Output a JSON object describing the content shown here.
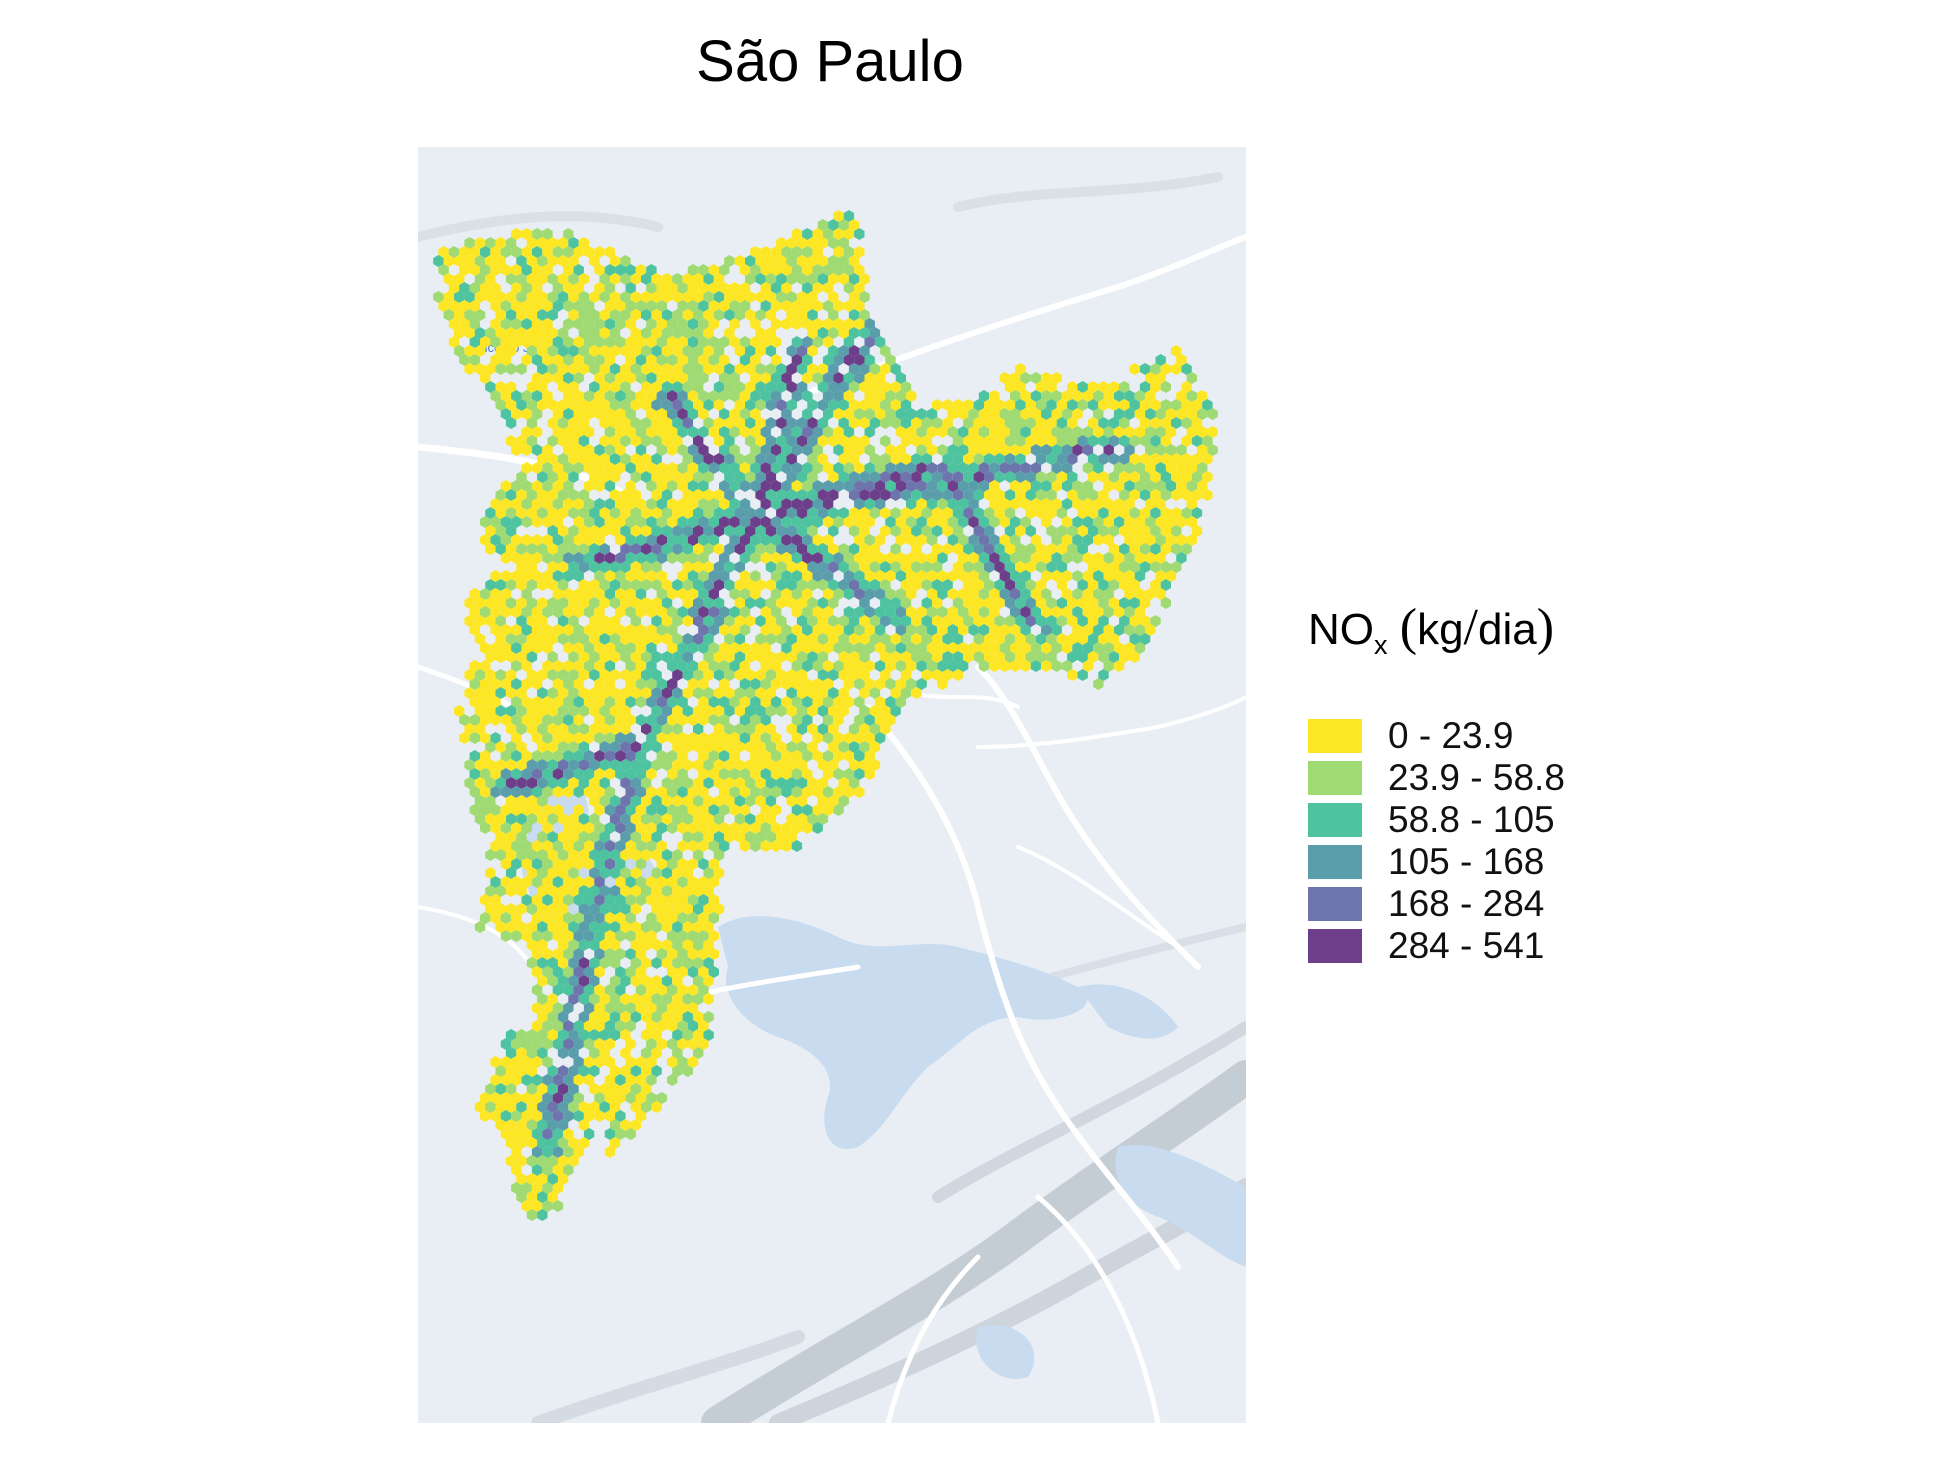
{
  "title": "São Paulo",
  "map": {
    "place_label": "Pico do Jar",
    "colors": {
      "land": "#e9eef5",
      "water": "#c9dcef",
      "roads": "#ffffff",
      "terrain_shade": "#9aa3ad"
    }
  },
  "legend": {
    "title_main": "NO",
    "title_sub": "x",
    "title_open": "(",
    "title_unit": "kg",
    "title_slash": "/",
    "title_unit2": "dia",
    "title_close": ")",
    "items": [
      {
        "label": "0 - 23.9",
        "color": "#fde725"
      },
      {
        "label": "23.9 - 58.8",
        "color": "#a0da72"
      },
      {
        "label": "58.8 - 105",
        "color": "#4ec3a0"
      },
      {
        "label": "105 - 168",
        "color": "#5a9eab"
      },
      {
        "label": "168 - 284",
        "color": "#6e75ad"
      },
      {
        "label": "284 - 541",
        "color": "#6d3f8a"
      }
    ]
  }
}
